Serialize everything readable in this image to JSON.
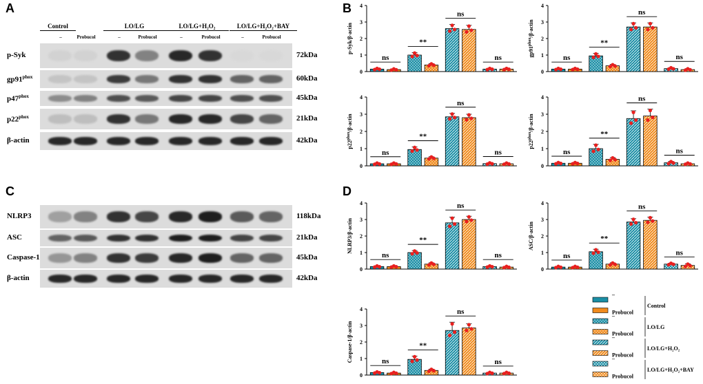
{
  "panels": {
    "A": "A",
    "B": "B",
    "C": "C",
    "D": "D"
  },
  "blotA": {
    "groups": [
      "Control",
      "LO/LG",
      "LO/LG+H₂O₂",
      "LO/LG+H₂O₂+BAY"
    ],
    "lane_labels": [
      "–",
      "Probucol",
      "–",
      "Probucol",
      "–",
      "Probucol",
      "–",
      "Probucol"
    ],
    "rows": [
      {
        "label": "p-Syk",
        "kda": "72kDa",
        "intensity": [
          0.05,
          0.05,
          0.85,
          0.45,
          0.9,
          0.85,
          0.02,
          0.02
        ]
      },
      {
        "label": "gp91",
        "sup": "phox",
        "kda": "60kDa",
        "intensity": [
          0.12,
          0.12,
          0.8,
          0.5,
          0.85,
          0.85,
          0.6,
          0.6
        ]
      },
      {
        "label": "p47",
        "sup": "phox",
        "kda": "45kDa",
        "intensity": [
          0.4,
          0.45,
          0.7,
          0.65,
          0.75,
          0.75,
          0.7,
          0.7
        ]
      },
      {
        "label": "p22",
        "sup": "phox",
        "kda": "21kDa",
        "intensity": [
          0.15,
          0.15,
          0.85,
          0.5,
          0.9,
          0.9,
          0.75,
          0.6
        ]
      },
      {
        "label": "β-actin",
        "kda": "42kDa",
        "intensity": [
          0.9,
          0.9,
          0.9,
          0.9,
          0.9,
          0.9,
          0.9,
          0.9
        ]
      }
    ]
  },
  "blotC": {
    "rows": [
      {
        "label": "NLRP3",
        "kda": "118kDa",
        "intensity": [
          0.3,
          0.45,
          0.85,
          0.75,
          0.9,
          0.95,
          0.65,
          0.6
        ]
      },
      {
        "label": "ASC",
        "kda": "21kDa",
        "intensity": [
          0.6,
          0.65,
          0.85,
          0.85,
          0.95,
          0.95,
          0.75,
          0.75
        ]
      },
      {
        "label": "Caspase-1",
        "kda": "45kDa",
        "intensity": [
          0.35,
          0.45,
          0.85,
          0.8,
          0.9,
          0.95,
          0.6,
          0.6
        ]
      },
      {
        "label": "β-actin",
        "kda": "42kDa",
        "intensity": [
          0.9,
          0.9,
          0.9,
          0.9,
          0.9,
          0.9,
          0.9,
          0.9
        ]
      }
    ]
  },
  "colors": {
    "teal": "#1b8fa6",
    "orange": "#f08a1c",
    "dot": "#e8201f"
  },
  "chart_data": [
    {
      "type": "bar",
      "ylabel": "p-Syk/β-actin",
      "ylim": [
        0,
        4
      ],
      "yticks": [
        "0",
        "1",
        "2",
        "3",
        "4"
      ],
      "values": [
        0.15,
        0.12,
        1.0,
        0.4,
        2.6,
        2.55,
        0.15,
        0.15
      ],
      "errors": [
        0.05,
        0.05,
        0.15,
        0.08,
        0.25,
        0.25,
        0.05,
        0.05
      ],
      "sig": [
        "ns",
        "**",
        "ns",
        "ns"
      ]
    },
    {
      "type": "bar",
      "ylabel": "gp91",
      "ylabel_sup": "phox",
      "ylabel_rest": "/β-actin",
      "ylim": [
        0,
        4
      ],
      "yticks": [
        "0",
        "1",
        "2",
        "3",
        "4"
      ],
      "values": [
        0.15,
        0.15,
        0.95,
        0.35,
        2.7,
        2.7,
        0.18,
        0.12
      ],
      "errors": [
        0.05,
        0.05,
        0.15,
        0.08,
        0.25,
        0.25,
        0.06,
        0.06
      ],
      "sig": [
        "ns",
        "**",
        "ns",
        "ns"
      ]
    },
    {
      "type": "bar",
      "ylabel": "p22",
      "ylabel_sup": "phox",
      "ylabel_rest": "/β-actin",
      "ylim": [
        0,
        4
      ],
      "yticks": [
        "0",
        "1",
        "2",
        "3",
        "4"
      ],
      "values": [
        0.12,
        0.12,
        0.95,
        0.45,
        2.85,
        2.8,
        0.13,
        0.12
      ],
      "errors": [
        0.05,
        0.05,
        0.15,
        0.08,
        0.2,
        0.2,
        0.05,
        0.05
      ],
      "sig": [
        "ns",
        "**",
        "ns",
        "ns"
      ]
    },
    {
      "type": "bar",
      "ylabel": "p22",
      "ylabel_sup": "phox",
      "ylabel_rest": "/β-actin",
      "ylim": [
        0,
        4
      ],
      "yticks": [
        "0",
        "1",
        "2",
        "3",
        "4"
      ],
      "values": [
        0.15,
        0.15,
        1.0,
        0.38,
        2.75,
        2.9,
        0.18,
        0.12
      ],
      "errors": [
        0.05,
        0.05,
        0.25,
        0.1,
        0.45,
        0.4,
        0.08,
        0.05
      ],
      "sig": [
        "ns",
        "**",
        "ns",
        "ns"
      ]
    },
    {
      "type": "bar",
      "ylabel": "NLRP3/β-actin",
      "ylim": [
        0,
        4
      ],
      "yticks": [
        "0",
        "1",
        "2",
        "3",
        "4"
      ],
      "values": [
        0.15,
        0.15,
        1.0,
        0.3,
        2.8,
        3.0,
        0.15,
        0.12
      ],
      "errors": [
        0.05,
        0.05,
        0.12,
        0.08,
        0.35,
        0.2,
        0.05,
        0.05
      ],
      "sig": [
        "ns",
        "**",
        "ns",
        "ns"
      ]
    },
    {
      "type": "bar",
      "ylabel": "ASC/β-actin",
      "ylim": [
        0,
        4
      ],
      "yticks": [
        "0",
        "1",
        "2",
        "3",
        "4"
      ],
      "values": [
        0.12,
        0.12,
        1.05,
        0.3,
        2.85,
        2.95,
        0.3,
        0.22
      ],
      "errors": [
        0.05,
        0.05,
        0.15,
        0.08,
        0.2,
        0.2,
        0.06,
        0.1
      ],
      "sig": [
        "ns",
        "**",
        "ns",
        "ns"
      ]
    },
    {
      "type": "bar",
      "ylabel": "Caspase-1/β-actin",
      "ylim": [
        0,
        4
      ],
      "yticks": [
        "0",
        "1",
        "2",
        "3",
        "4"
      ],
      "values": [
        0.15,
        0.12,
        0.95,
        0.28,
        2.7,
        2.85,
        0.12,
        0.12
      ],
      "errors": [
        0.05,
        0.05,
        0.2,
        0.08,
        0.5,
        0.25,
        0.05,
        0.05
      ],
      "sig": [
        "ns",
        "**",
        "ns",
        "ns"
      ]
    }
  ],
  "legend": {
    "items": [
      {
        "label": "–",
        "pattern": "solid",
        "color": "teal"
      },
      {
        "label": "Probucol",
        "pattern": "solid",
        "color": "orange"
      },
      {
        "label": "–",
        "pattern": "dots",
        "color": "teal"
      },
      {
        "label": "Probucol",
        "pattern": "dots",
        "color": "orange"
      },
      {
        "label": "–",
        "pattern": "diag",
        "color": "teal"
      },
      {
        "label": "Probucol",
        "pattern": "diag",
        "color": "orange"
      },
      {
        "label": "–",
        "pattern": "check",
        "color": "teal"
      },
      {
        "label": "Probucol",
        "pattern": "check",
        "color": "orange"
      }
    ],
    "groups": [
      "Control",
      "LO/LG",
      "LO/LG+H₂O₂",
      "LO/LG+H₂O₂+BAY"
    ]
  }
}
